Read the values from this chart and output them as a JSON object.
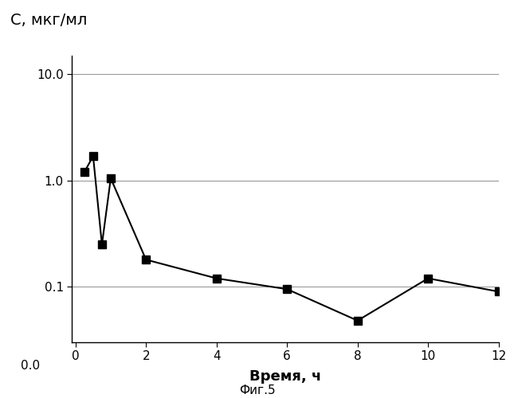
{
  "x": [
    0.25,
    0.5,
    0.75,
    1.0,
    2.0,
    4.0,
    6.0,
    8.0,
    10.0,
    12.0
  ],
  "y": [
    1.2,
    1.7,
    0.25,
    1.05,
    0.18,
    0.12,
    0.095,
    0.048,
    0.12,
    0.09
  ],
  "xlabel": "Время, ч",
  "ylabel": "С, мкг/мл",
  "ylim_log": [
    0.03,
    15.0
  ],
  "xlim": [
    -0.1,
    12
  ],
  "xticks": [
    0,
    2,
    4,
    6,
    8,
    10,
    12
  ],
  "line_color": "#000000",
  "marker_color": "#000000",
  "marker": "s",
  "marker_size": 7,
  "line_width": 1.5,
  "fig_caption": "Фиг.5",
  "background_color": "#ffffff",
  "ylabel_fontsize": 14,
  "xlabel_fontsize": 13,
  "caption_fontsize": 11,
  "tick_fontsize": 11,
  "grid_color": "#999999",
  "grid_linewidth": 0.8
}
